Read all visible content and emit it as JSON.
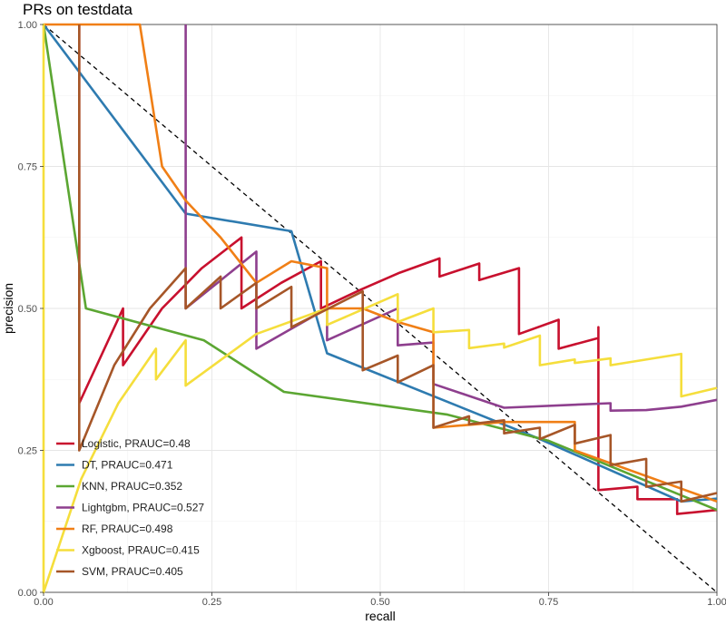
{
  "chart_data": {
    "type": "line",
    "title": "PRs on testdata",
    "xlabel": "recall",
    "ylabel": "precision",
    "xlim": [
      0,
      1
    ],
    "ylim": [
      0,
      1
    ],
    "xticks": [
      0,
      0.25,
      0.5,
      0.75,
      1
    ],
    "xtick_labels": [
      "0.00",
      "0.25",
      "0.50",
      "0.75",
      "1.00"
    ],
    "yticks": [
      0,
      0.25,
      0.5,
      0.75,
      1
    ],
    "ytick_labels": [
      "0.00",
      "0.25",
      "0.50",
      "0.75",
      "1.00"
    ],
    "legend_position": "bottom-left",
    "reference_line": {
      "style": "dashed",
      "points": [
        [
          0,
          1
        ],
        [
          1,
          0
        ]
      ]
    },
    "series": [
      {
        "name": "Logistic, PRAUC=0.48",
        "color": "#C8102E",
        "points": [
          [
            0.053,
            1.0
          ],
          [
            0.053,
            0.333
          ],
          [
            0.118,
            0.5
          ],
          [
            0.118,
            0.4
          ],
          [
            0.176,
            0.5
          ],
          [
            0.235,
            0.571
          ],
          [
            0.294,
            0.625
          ],
          [
            0.294,
            0.5
          ],
          [
            0.353,
            0.545
          ],
          [
            0.412,
            0.583
          ],
          [
            0.412,
            0.5
          ],
          [
            0.471,
            0.533
          ],
          [
            0.529,
            0.563
          ],
          [
            0.588,
            0.588
          ],
          [
            0.588,
            0.556
          ],
          [
            0.647,
            0.579
          ],
          [
            0.647,
            0.55
          ],
          [
            0.706,
            0.571
          ],
          [
            0.706,
            0.455
          ],
          [
            0.765,
            0.48
          ],
          [
            0.765,
            0.429
          ],
          [
            0.824,
            0.448
          ],
          [
            0.824,
            0.433
          ],
          [
            0.824,
            0.467
          ],
          [
            0.824,
            0.18
          ],
          [
            0.882,
            0.186
          ],
          [
            0.882,
            0.164
          ],
          [
            0.941,
            0.164
          ],
          [
            0.941,
            0.138
          ],
          [
            1.0,
            0.145
          ]
        ]
      },
      {
        "name": "DT, PRAUC=0.471",
        "color": "#2E7BB0",
        "points": [
          [
            0.0,
            1.0
          ],
          [
            0.211,
            0.667
          ],
          [
            0.368,
            0.636
          ],
          [
            0.421,
            0.421
          ],
          [
            0.737,
            0.27
          ],
          [
            0.947,
            0.16
          ],
          [
            1.0,
            0.165
          ]
        ]
      },
      {
        "name": "KNN, PRAUC=0.352",
        "color": "#5BA632",
        "points": [
          [
            0.0,
            1.0
          ],
          [
            0.063,
            0.5
          ],
          [
            0.238,
            0.444
          ],
          [
            0.357,
            0.353
          ],
          [
            0.6,
            0.313
          ],
          [
            0.75,
            0.267
          ],
          [
            1.0,
            0.145
          ]
        ]
      },
      {
        "name": "Lightgbm, PRAUC=0.527",
        "color": "#8E3F8E",
        "points": [
          [
            0.211,
            1.0
          ],
          [
            0.211,
            0.5
          ],
          [
            0.316,
            0.6
          ],
          [
            0.316,
            0.429
          ],
          [
            0.421,
            0.5
          ],
          [
            0.421,
            0.444
          ],
          [
            0.526,
            0.5
          ],
          [
            0.526,
            0.435
          ],
          [
            0.579,
            0.44
          ],
          [
            0.579,
            0.367
          ],
          [
            0.684,
            0.325
          ],
          [
            0.842,
            0.333
          ],
          [
            0.842,
            0.32
          ],
          [
            0.895,
            0.321
          ],
          [
            0.947,
            0.327
          ],
          [
            1.0,
            0.339
          ]
        ]
      },
      {
        "name": "RF, PRAUC=0.498",
        "color": "#F07F16",
        "points": [
          [
            0.0,
            1.0
          ],
          [
            0.143,
            1.0
          ],
          [
            0.176,
            0.75
          ],
          [
            0.211,
            0.69
          ],
          [
            0.263,
            0.625
          ],
          [
            0.316,
            0.545
          ],
          [
            0.368,
            0.583
          ],
          [
            0.421,
            0.571
          ],
          [
            0.421,
            0.5
          ],
          [
            0.474,
            0.5
          ],
          [
            0.526,
            0.476
          ],
          [
            0.579,
            0.458
          ],
          [
            0.579,
            0.29
          ],
          [
            0.684,
            0.3
          ],
          [
            0.789,
            0.3
          ],
          [
            0.789,
            0.25
          ],
          [
            1.0,
            0.16
          ]
        ]
      },
      {
        "name": "Xgboost, PRAUC=0.415",
        "color": "#F5DE3C",
        "points": [
          [
            0.0,
            0.0
          ],
          [
            0.0,
            1.0
          ],
          [
            0.0,
            0.0
          ],
          [
            0.056,
            0.2
          ],
          [
            0.111,
            0.333
          ],
          [
            0.167,
            0.429
          ],
          [
            0.167,
            0.375
          ],
          [
            0.211,
            0.444
          ],
          [
            0.211,
            0.364
          ],
          [
            0.316,
            0.455
          ],
          [
            0.421,
            0.5
          ],
          [
            0.421,
            0.471
          ],
          [
            0.526,
            0.525
          ],
          [
            0.526,
            0.476
          ],
          [
            0.579,
            0.5
          ],
          [
            0.579,
            0.458
          ],
          [
            0.632,
            0.462
          ],
          [
            0.632,
            0.43
          ],
          [
            0.684,
            0.438
          ],
          [
            0.684,
            0.431
          ],
          [
            0.737,
            0.452
          ],
          [
            0.737,
            0.4
          ],
          [
            0.789,
            0.41
          ],
          [
            0.789,
            0.404
          ],
          [
            0.842,
            0.412
          ],
          [
            0.842,
            0.4
          ],
          [
            0.947,
            0.42
          ],
          [
            0.947,
            0.345
          ],
          [
            1.0,
            0.36
          ]
        ]
      },
      {
        "name": "SVM, PRAUC=0.405",
        "color": "#A65628",
        "points": [
          [
            0.053,
            1.0
          ],
          [
            0.053,
            0.25
          ],
          [
            0.105,
            0.4
          ],
          [
            0.158,
            0.5
          ],
          [
            0.211,
            0.571
          ],
          [
            0.211,
            0.5
          ],
          [
            0.263,
            0.556
          ],
          [
            0.263,
            0.5
          ],
          [
            0.316,
            0.545
          ],
          [
            0.316,
            0.5
          ],
          [
            0.368,
            0.538
          ],
          [
            0.368,
            0.467
          ],
          [
            0.474,
            0.53
          ],
          [
            0.474,
            0.391
          ],
          [
            0.526,
            0.417
          ],
          [
            0.526,
            0.37
          ],
          [
            0.579,
            0.4
          ],
          [
            0.579,
            0.29
          ],
          [
            0.632,
            0.31
          ],
          [
            0.632,
            0.296
          ],
          [
            0.684,
            0.303
          ],
          [
            0.684,
            0.28
          ],
          [
            0.737,
            0.29
          ],
          [
            0.737,
            0.27
          ],
          [
            0.789,
            0.295
          ],
          [
            0.789,
            0.262
          ],
          [
            0.842,
            0.277
          ],
          [
            0.842,
            0.224
          ],
          [
            0.895,
            0.235
          ],
          [
            0.895,
            0.186
          ],
          [
            0.947,
            0.195
          ],
          [
            0.947,
            0.16
          ],
          [
            1.0,
            0.175
          ]
        ]
      }
    ]
  }
}
